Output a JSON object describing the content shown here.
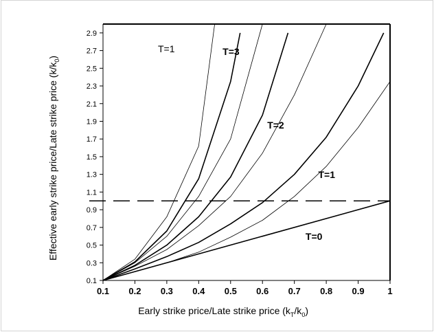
{
  "chart_data": {
    "type": "line",
    "xlabel": {
      "main": "Early strike price/Late strike price (k",
      "sub1": "T",
      "mid": "/k",
      "sub2": "0",
      "end": ")"
    },
    "ylabel": {
      "main": "Effective early strike price/Late strike price (k/k",
      "sub": "0",
      "end": ")"
    },
    "xlim": [
      0.1,
      1.0
    ],
    "ylim": [
      0.1,
      3.0
    ],
    "x_ticks": [
      "0.1",
      "0.2",
      "0.3",
      "0.4",
      "0.5",
      "0.6",
      "0.7",
      "0.8",
      "0.9",
      "1"
    ],
    "y_ticks": [
      "0.1",
      "0.3",
      "0.5",
      "0.7",
      "0.9",
      "1.1",
      "1.3",
      "1.5",
      "1.7",
      "1.9",
      "2.1",
      "2.3",
      "2.5",
      "2.7",
      "2.9"
    ],
    "reference_line": {
      "y": 1.0,
      "style": "dashed"
    },
    "series": [
      {
        "name": "T=0",
        "weight": "bold",
        "x": [
          0.1,
          1.0
        ],
        "y": [
          0.1,
          1.0
        ]
      },
      {
        "name": "",
        "weight": "thin",
        "x": [
          0.1,
          0.2,
          0.3,
          0.4,
          0.5,
          0.6,
          0.7,
          0.8,
          0.9,
          1.0
        ],
        "y": [
          0.1,
          0.2,
          0.3,
          0.42,
          0.59,
          0.78,
          1.05,
          1.39,
          1.83,
          2.35
        ]
      },
      {
        "name": "T=1",
        "weight": "bold",
        "x": [
          0.1,
          0.2,
          0.3,
          0.4,
          0.5,
          0.6,
          0.7,
          0.8,
          0.9,
          0.98
        ],
        "y": [
          0.1,
          0.23,
          0.37,
          0.53,
          0.74,
          0.98,
          1.3,
          1.72,
          2.3,
          2.9
        ]
      },
      {
        "name": "",
        "weight": "thin",
        "x": [
          0.1,
          0.2,
          0.3,
          0.4,
          0.5,
          0.6,
          0.7,
          0.8
        ],
        "y": [
          0.1,
          0.26,
          0.45,
          0.72,
          1.05,
          1.54,
          2.2,
          3.0
        ]
      },
      {
        "name": "T=2",
        "weight": "bold",
        "x": [
          0.1,
          0.2,
          0.3,
          0.4,
          0.5,
          0.6,
          0.68
        ],
        "y": [
          0.1,
          0.27,
          0.5,
          0.82,
          1.27,
          1.97,
          2.9
        ]
      },
      {
        "name": "",
        "weight": "thin",
        "x": [
          0.1,
          0.2,
          0.3,
          0.4,
          0.5,
          0.6
        ],
        "y": [
          0.1,
          0.3,
          0.6,
          1.05,
          1.7,
          3.0
        ]
      },
      {
        "name": "T=3",
        "weight": "bold",
        "x": [
          0.1,
          0.2,
          0.3,
          0.4,
          0.5,
          0.53
        ],
        "y": [
          0.1,
          0.31,
          0.66,
          1.25,
          2.35,
          2.9
        ]
      },
      {
        "name": "",
        "weight": "thin",
        "x": [
          0.1,
          0.2,
          0.3,
          0.4,
          0.45
        ],
        "y": [
          0.1,
          0.34,
          0.82,
          1.62,
          3.0
        ]
      }
    ],
    "annotations": [
      {
        "text": "T=1",
        "weight": "normal"
      },
      {
        "text": "T=3",
        "weight": "bold"
      },
      {
        "text": "T=2",
        "weight": "bold"
      },
      {
        "text": "T=1",
        "weight": "bold"
      },
      {
        "text": "T=0",
        "weight": "bold"
      }
    ]
  }
}
